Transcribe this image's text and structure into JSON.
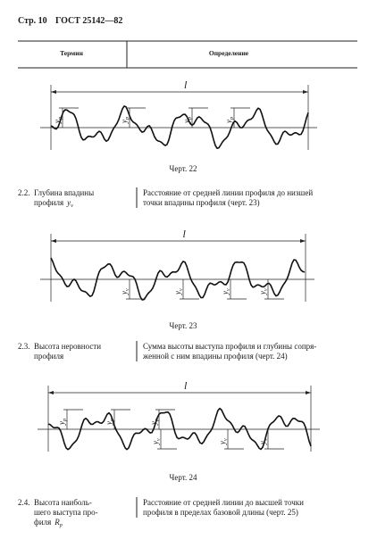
{
  "header": {
    "page": "Стр. 10",
    "standard": "ГОСТ 25142—82"
  },
  "table_header": {
    "term": "Термин",
    "definition": "Определение"
  },
  "figures": [
    {
      "caption": "Черт. 22",
      "length": "l",
      "symbol": "y",
      "sub": "p"
    },
    {
      "caption": "Черт. 23",
      "length": "l",
      "symbol": "y",
      "sub": "v"
    },
    {
      "caption": "Черт. 24",
      "length": "l",
      "symbol": "y",
      "sub_top": "p",
      "sub_bottom": "v"
    }
  ],
  "entries": [
    {
      "number": "2.2.",
      "term": [
        "Глубина впадины",
        "профиля"
      ],
      "symbol": "y",
      "sub": "v",
      "definition": [
        "Расстояние от средней линии профиля до низшей",
        "точки впадины профиля (черт. 23)"
      ]
    },
    {
      "number": "2.3.",
      "term": [
        "Высота неровности",
        "профиля"
      ],
      "definition": [
        "Сумма высоты выступа профиля и глубины сопря-",
        "женной с ним впадины профиля (черт. 24)"
      ]
    },
    {
      "number": "2.4.",
      "term": [
        "Высота наиболь-",
        "шего выступа про-",
        "филя"
      ],
      "symbol": "R",
      "sub": "p",
      "definition": [
        "Расстояние от средней линии до высшей точки",
        "профиля в пределах базовой длины (черт. 25)"
      ]
    }
  ]
}
